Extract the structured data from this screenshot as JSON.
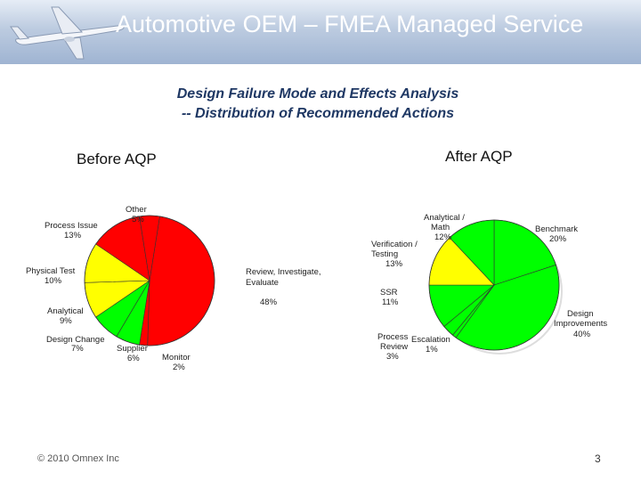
{
  "header": {
    "title": "Automotive OEM – FMEA Managed Service"
  },
  "subtitle": {
    "line1": "Design Failure Mode and Effects Analysis",
    "line2": "-- Distribution of Recommended Actions"
  },
  "colors": {
    "red": "#ff0000",
    "yellow": "#ffff00",
    "green": "#00ff00"
  },
  "chart_data": [
    {
      "type": "pie",
      "title": "Before AQP",
      "slices": [
        {
          "name": "Review, Investigate, Evaluate",
          "value": 48,
          "pct_label": "48%",
          "color": "#ff0000"
        },
        {
          "name": "Monitor",
          "value": 2,
          "pct_label": "2%",
          "color": "#ff0000"
        },
        {
          "name": "Supplier",
          "value": 6,
          "pct_label": "6%",
          "color": "#00ff00"
        },
        {
          "name": "Design Change",
          "value": 7,
          "pct_label": "7%",
          "color": "#00ff00"
        },
        {
          "name": "Analytical",
          "value": 9,
          "pct_label": "9%",
          "color": "#ffff00"
        },
        {
          "name": "Physical Test",
          "value": 10,
          "pct_label": "10%",
          "color": "#ffff00"
        },
        {
          "name": "Process Issue",
          "value": 13,
          "pct_label": "13%",
          "color": "#ff0000"
        },
        {
          "name": "Other",
          "value": 5,
          "pct_label": "5%",
          "color": "#ff0000"
        }
      ]
    },
    {
      "type": "pie",
      "title": "After AQP",
      "slices": [
        {
          "name": "Benchmark",
          "value": 20,
          "pct_label": "20%",
          "color": "#00ff00"
        },
        {
          "name": "Design Improvements",
          "value": 40,
          "pct_label": "40%",
          "color": "#00ff00"
        },
        {
          "name": "Escalation",
          "value": 1,
          "pct_label": "1%",
          "color": "#00ff00"
        },
        {
          "name": "Process Review",
          "value": 3,
          "pct_label": "3%",
          "color": "#00ff00"
        },
        {
          "name": "SSR",
          "value": 11,
          "pct_label": "11%",
          "color": "#00ff00"
        },
        {
          "name": "Verification / Testing",
          "value": 13,
          "pct_label": "13%",
          "color": "#ffff00"
        },
        {
          "name": "Analytical / Math",
          "value": 12,
          "pct_label": "12%",
          "color": "#00ff00"
        }
      ]
    }
  ],
  "footer": {
    "copyright": "© 2010 Omnex Inc",
    "page": "3"
  }
}
